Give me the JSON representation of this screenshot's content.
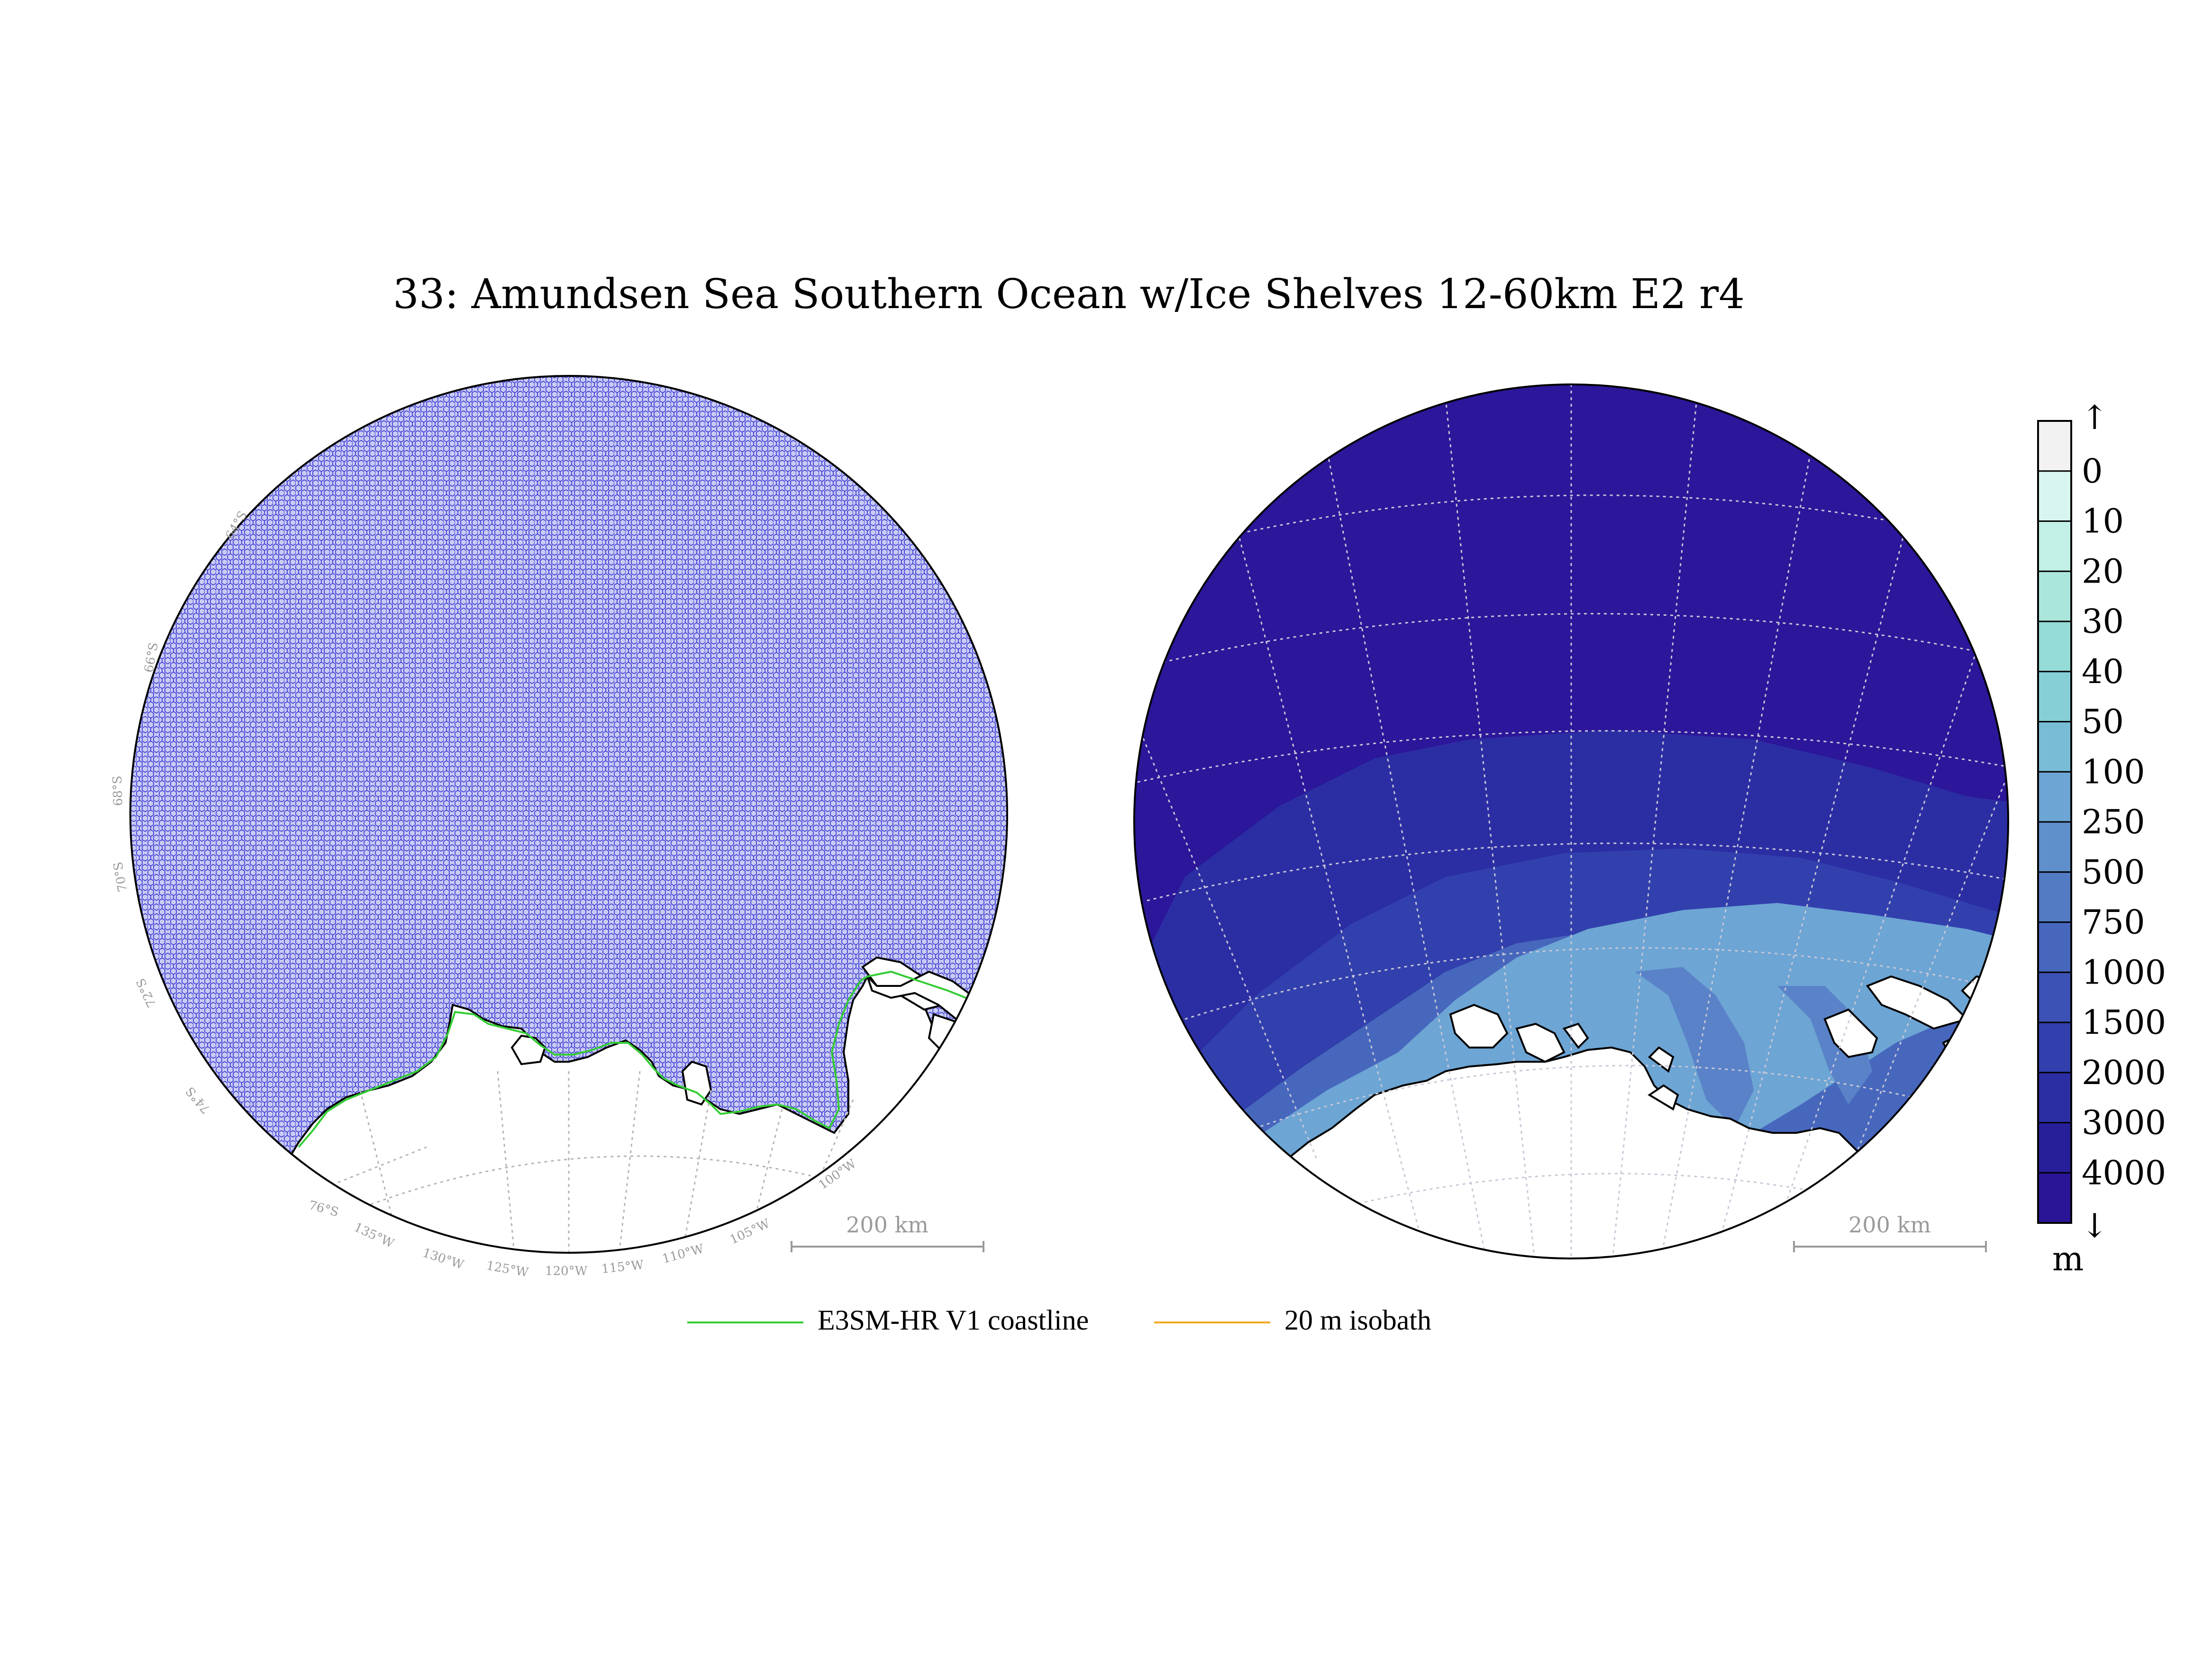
{
  "title": "33: Amundsen Sea Southern Ocean w/Ice Shelves 12-60km E2 r4",
  "colors": {
    "mesh_fill": "#c9cbf4",
    "mesh_edge": "#2f2fd0",
    "land": "#ffffff",
    "coastline": "#33cc33",
    "isobath": "#f2a823",
    "graticule": "#b5b5b5",
    "scalebar": "#9a9a9a",
    "outline": "#000000"
  },
  "left_map": {
    "lat_labels": [
      "64°S",
      "66°S",
      "68°S",
      "70°S",
      "72°S",
      "74°S",
      "76°S"
    ],
    "lon_labels": [
      "135°W",
      "130°W",
      "125°W",
      "120°W",
      "115°W",
      "110°W",
      "105°W",
      "100°W"
    ],
    "scalebar": "200 km"
  },
  "right_map": {
    "scalebar": "200 km"
  },
  "colorbar": {
    "top_arrow": "↑",
    "bottom_arrow": "↓",
    "ticks": [
      "0",
      "10",
      "20",
      "30",
      "40",
      "50",
      "100",
      "250",
      "500",
      "750",
      "1000",
      "1500",
      "2000",
      "3000",
      "4000"
    ],
    "colors": [
      "#f2f2f2",
      "#d8f6ef",
      "#c2efe6",
      "#abe6dd",
      "#95dbd7",
      "#86cfd7",
      "#79bcd6",
      "#6da5d4",
      "#6090cb",
      "#537bc4",
      "#4767bd",
      "#3c52b5",
      "#3240ad",
      "#2b2ea3",
      "#271e9a",
      "#2a1597"
    ],
    "unit": "m"
  },
  "legend": {
    "items": [
      {
        "label": "E3SM-HR V1 coastline",
        "color": "#33cc33"
      },
      {
        "label": "20 m isobath",
        "color": "#f2a823"
      }
    ]
  }
}
